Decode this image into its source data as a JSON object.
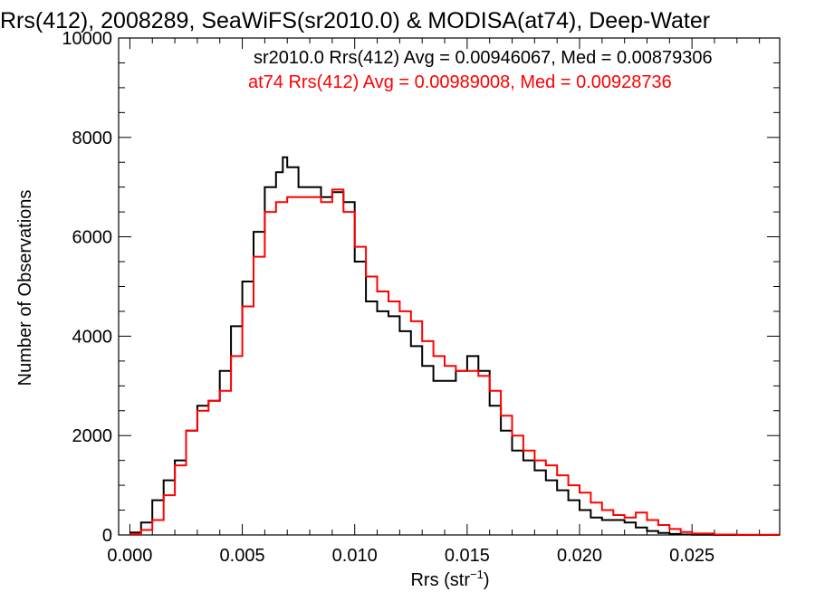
{
  "chart_data": {
    "type": "line",
    "title": "Rrs(412), 2008289, SeaWiFS(sr2010.0) & MODISA(at74), Deep-Water",
    "xlabel": "Rrs (str",
    "xlabel_sup": "−1",
    "xlabel_close": ")",
    "ylabel": "Number of Observations",
    "xlim": [
      -0.0005,
      0.0289
    ],
    "ylim": [
      0,
      10000
    ],
    "xticks": [
      0.0,
      0.005,
      0.01,
      0.015,
      0.02,
      0.025
    ],
    "xtick_labels": [
      "0.000",
      "0.005",
      "0.010",
      "0.015",
      "0.020",
      "0.025"
    ],
    "yticks": [
      0,
      2000,
      4000,
      6000,
      8000,
      10000
    ],
    "ytick_labels": [
      "0",
      "2000",
      "4000",
      "6000",
      "8000",
      "10000"
    ],
    "grid": false,
    "legend_position": "top-right",
    "series": [
      {
        "name": "sr2010.0",
        "legend": "sr2010.0 Rrs(412) Avg = 0.00946067, Med = 0.00879306",
        "color": "#000000",
        "x": [
          0.0,
          0.0005,
          0.001,
          0.0015,
          0.002,
          0.0025,
          0.003,
          0.0035,
          0.004,
          0.0045,
          0.005,
          0.0055,
          0.006,
          0.0065,
          0.0068,
          0.007,
          0.0075,
          0.008,
          0.0085,
          0.009,
          0.0095,
          0.01,
          0.0105,
          0.011,
          0.0115,
          0.012,
          0.0125,
          0.013,
          0.0135,
          0.014,
          0.0145,
          0.015,
          0.0153,
          0.0155,
          0.016,
          0.0165,
          0.017,
          0.0175,
          0.018,
          0.0185,
          0.019,
          0.0195,
          0.02,
          0.0205,
          0.021,
          0.0215,
          0.022,
          0.0225,
          0.023,
          0.0235,
          0.024,
          0.0245,
          0.025,
          0.026,
          0.027,
          0.0289
        ],
        "y": [
          50,
          250,
          700,
          1100,
          1500,
          2100,
          2600,
          2700,
          3300,
          4200,
          5100,
          6100,
          7000,
          7300,
          7600,
          7400,
          7000,
          7000,
          6800,
          6900,
          6700,
          5500,
          4700,
          4500,
          4400,
          4100,
          3800,
          3400,
          3100,
          3100,
          3300,
          3600,
          3600,
          3300,
          2600,
          2100,
          1700,
          1500,
          1300,
          1100,
          900,
          700,
          500,
          350,
          300,
          300,
          250,
          150,
          80,
          40,
          20,
          10,
          5,
          0,
          0,
          0
        ]
      },
      {
        "name": "at74",
        "legend": "at74 Rrs(412) Avg = 0.00989008, Med = 0.00928736",
        "color": "#ff0000",
        "x": [
          0.0,
          0.0005,
          0.001,
          0.0015,
          0.002,
          0.0025,
          0.003,
          0.0035,
          0.004,
          0.0045,
          0.005,
          0.0055,
          0.006,
          0.0065,
          0.007,
          0.0075,
          0.008,
          0.0085,
          0.009,
          0.0095,
          0.01,
          0.0105,
          0.011,
          0.0115,
          0.012,
          0.0125,
          0.013,
          0.0135,
          0.014,
          0.0145,
          0.015,
          0.0155,
          0.016,
          0.0165,
          0.017,
          0.0175,
          0.018,
          0.0185,
          0.019,
          0.0195,
          0.02,
          0.0205,
          0.021,
          0.0215,
          0.022,
          0.0225,
          0.023,
          0.0235,
          0.024,
          0.0245,
          0.025,
          0.026,
          0.027,
          0.0289
        ],
        "y": [
          20,
          100,
          300,
          800,
          1400,
          2100,
          2500,
          2700,
          2900,
          3600,
          4600,
          5600,
          6500,
          6700,
          6800,
          6800,
          6800,
          6700,
          6950,
          6500,
          5800,
          5200,
          4900,
          4700,
          4500,
          4300,
          3900,
          3600,
          3400,
          3300,
          3300,
          3200,
          2900,
          2400,
          2000,
          1700,
          1500,
          1400,
          1200,
          1000,
          850,
          650,
          500,
          400,
          350,
          450,
          300,
          200,
          120,
          60,
          30,
          10,
          5,
          0
        ]
      }
    ]
  }
}
